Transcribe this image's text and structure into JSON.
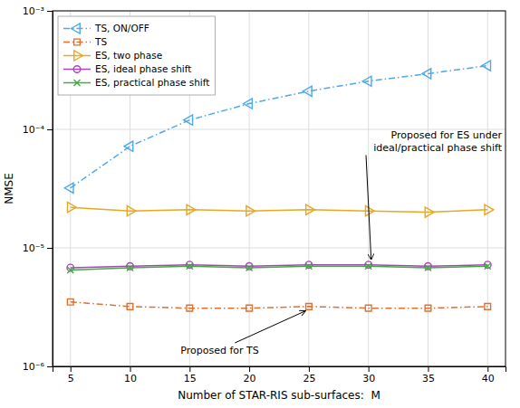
{
  "chart_data": {
    "type": "line",
    "x": [
      5,
      10,
      15,
      20,
      25,
      30,
      35,
      40
    ],
    "series": [
      {
        "name": "TS, ON/OFF",
        "color": "#4fa8e8",
        "marker": "triangle-left",
        "line_style": "dashdot",
        "values": [
          3.2e-05,
          7.2e-05,
          0.00012,
          0.000165,
          0.00021,
          0.000255,
          0.000295,
          0.000345
        ]
      },
      {
        "name": "TS",
        "color": "#e07030",
        "marker": "square",
        "line_style": "dashdot",
        "values": [
          3.5e-06,
          3.2e-06,
          3.1e-06,
          3.1e-06,
          3.2e-06,
          3.1e-06,
          3.1e-06,
          3.2e-06
        ]
      },
      {
        "name": "ES, two phase",
        "color": "#e8a820",
        "marker": "triangle-right",
        "line_style": "solid",
        "values": [
          2.2e-05,
          2.05e-05,
          2.1e-05,
          2.05e-05,
          2.1e-05,
          2.05e-05,
          2e-05,
          2.1e-05
        ]
      },
      {
        "name": "ES, ideal phase shift",
        "color": "#aa44bb",
        "marker": "circle",
        "line_style": "solid",
        "values": [
          6.8e-06,
          7e-06,
          7.2e-06,
          7e-06,
          7.2e-06,
          7.2e-06,
          7e-06,
          7.2e-06
        ]
      },
      {
        "name": "ES, practical phase shift",
        "color": "#44aa44",
        "marker": "x",
        "line_style": "solid",
        "values": [
          6.5e-06,
          6.8e-06,
          7e-06,
          6.8e-06,
          7e-06,
          7e-06,
          6.8e-06,
          7e-06
        ]
      }
    ],
    "x_label": "Number of STAR-RIS sub-surfaces:  M",
    "y_label": "NMSE",
    "annotations": [
      "Proposed for ES under\nideal/practical phase shift",
      "Proposed for TS"
    ],
    "xlim": [
      3.5,
      41.5
    ],
    "xticks": [
      5,
      10,
      15,
      20,
      25,
      30,
      35,
      40
    ],
    "ylim": [
      1e-06,
      0.001
    ],
    "yticks": [
      {
        "value": 1e-06,
        "label": "10⁻⁶"
      },
      {
        "value": 1e-05,
        "label": "10⁻⁵"
      },
      {
        "value": 0.0001,
        "label": "10⁻⁴"
      },
      {
        "value": 0.001,
        "label": "10⁻³"
      }
    ],
    "log": "y",
    "grid": true,
    "legend": "upper left"
  }
}
